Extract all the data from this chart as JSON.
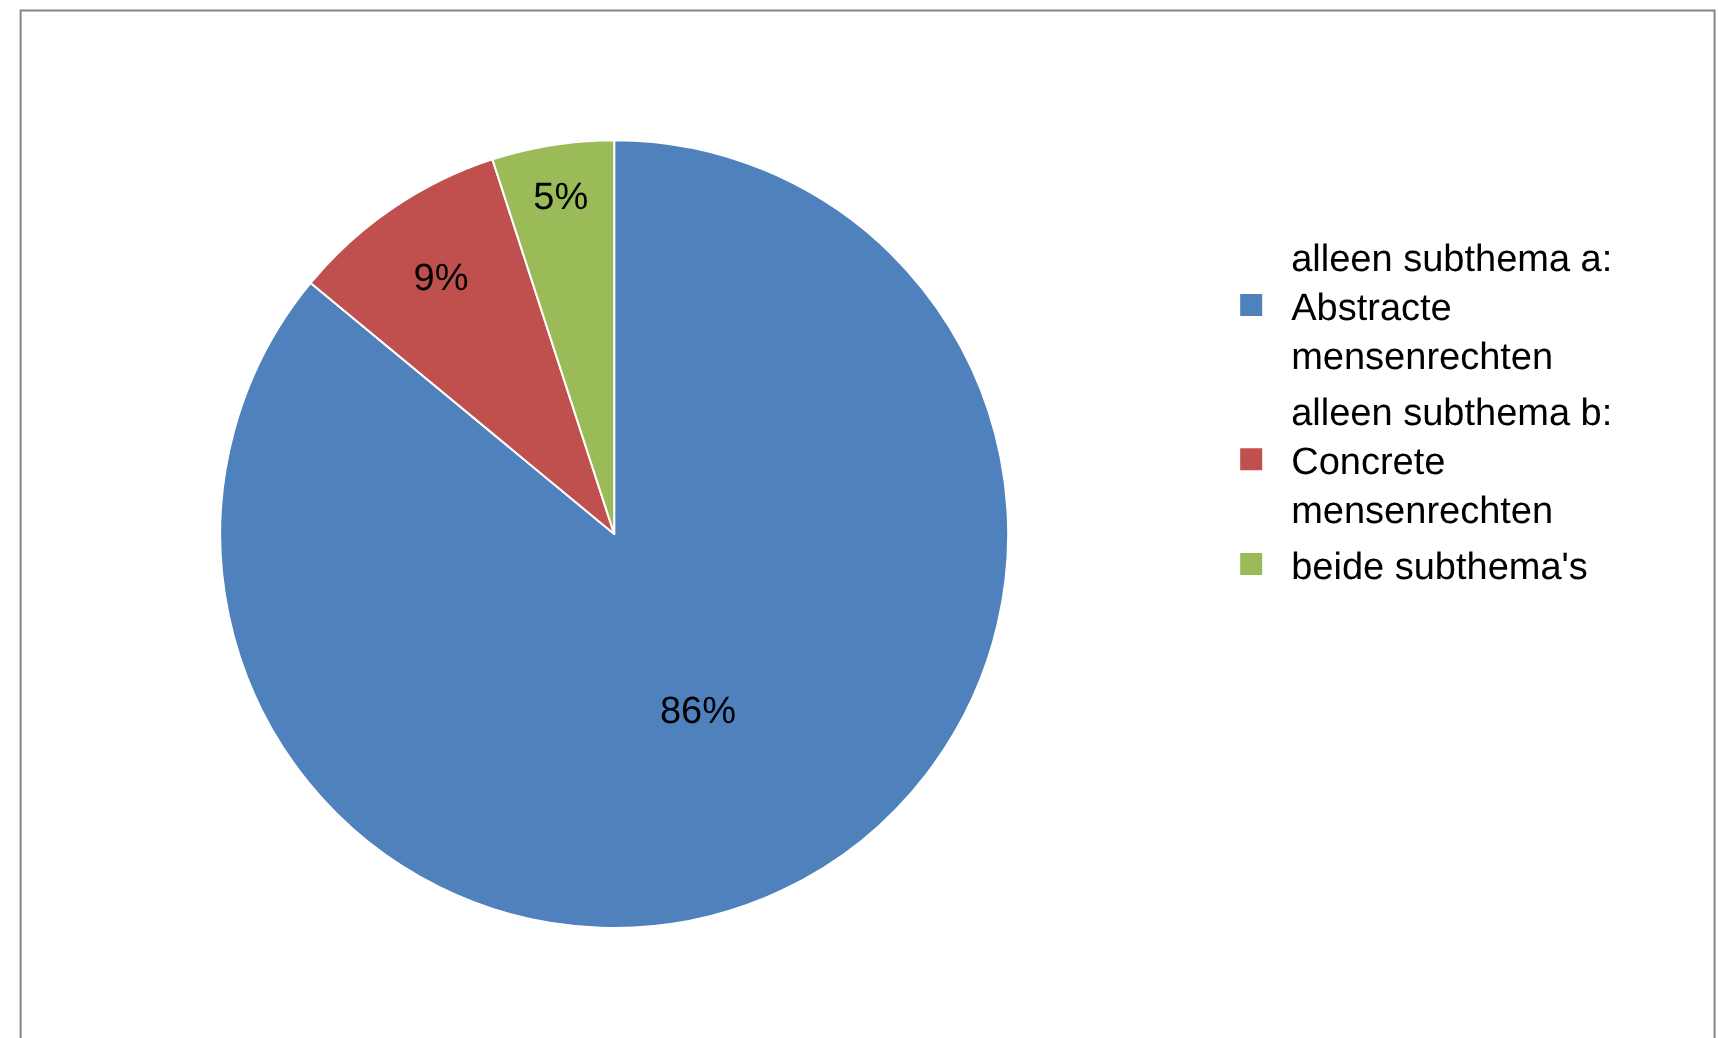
{
  "chart_data": {
    "type": "pie",
    "categories": [
      "alleen subthema a: Abstracte mensenrechten",
      "alleen subthema b: Concrete mensenrechten",
      "beide subthema's"
    ],
    "values": [
      86,
      9,
      5
    ],
    "colors": [
      "#4f81bd",
      "#c0504d",
      "#9bbb59"
    ],
    "value_labels": [
      "86%",
      "9%",
      "5%"
    ],
    "legend": "right"
  }
}
